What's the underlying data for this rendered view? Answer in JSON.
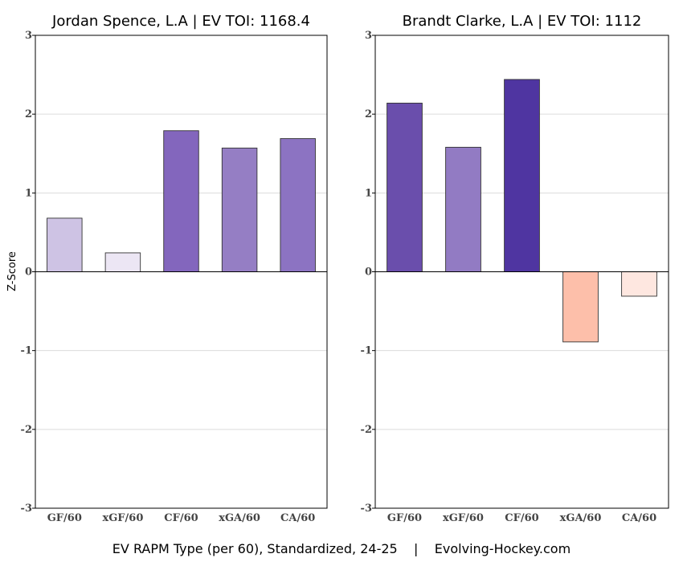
{
  "caption": "EV RAPM Type (per 60), Standardized, 24-25    |    Evolving-Hockey.com",
  "ylabel": "Z-Score",
  "chart_data": [
    {
      "type": "bar",
      "title": "Jordan Spence, L.A  |  EV TOI: 1168.4",
      "categories": [
        "GF/60",
        "xGF/60",
        "CF/60",
        "xGA/60",
        "CA/60"
      ],
      "values": [
        0.68,
        0.24,
        1.79,
        1.57,
        1.69
      ],
      "colors": [
        "#cec3e4",
        "#ece6f4",
        "#8366bd",
        "#957ec4",
        "#8c73c2"
      ],
      "ylim": [
        -3,
        3
      ],
      "yticks": [
        "-3",
        "-2",
        "-1",
        "0",
        "1",
        "2",
        "3"
      ],
      "xlabel": "",
      "ylabel": "Z-Score",
      "grid": true
    },
    {
      "type": "bar",
      "title": "Brandt Clarke, L.A  |  EV TOI: 1112",
      "categories": [
        "GF/60",
        "xGF/60",
        "CF/60",
        "xGA/60",
        "CA/60"
      ],
      "values": [
        2.14,
        1.58,
        2.44,
        -0.89,
        -0.31
      ],
      "colors": [
        "#6a4eac",
        "#927bc3",
        "#4f35a1",
        "#fdbfaa",
        "#fee7e0"
      ],
      "ylim": [
        -3,
        3
      ],
      "yticks": [
        "-3",
        "-2",
        "-1",
        "0",
        "1",
        "2",
        "3"
      ],
      "xlabel": "",
      "ylabel": "",
      "grid": true
    }
  ]
}
